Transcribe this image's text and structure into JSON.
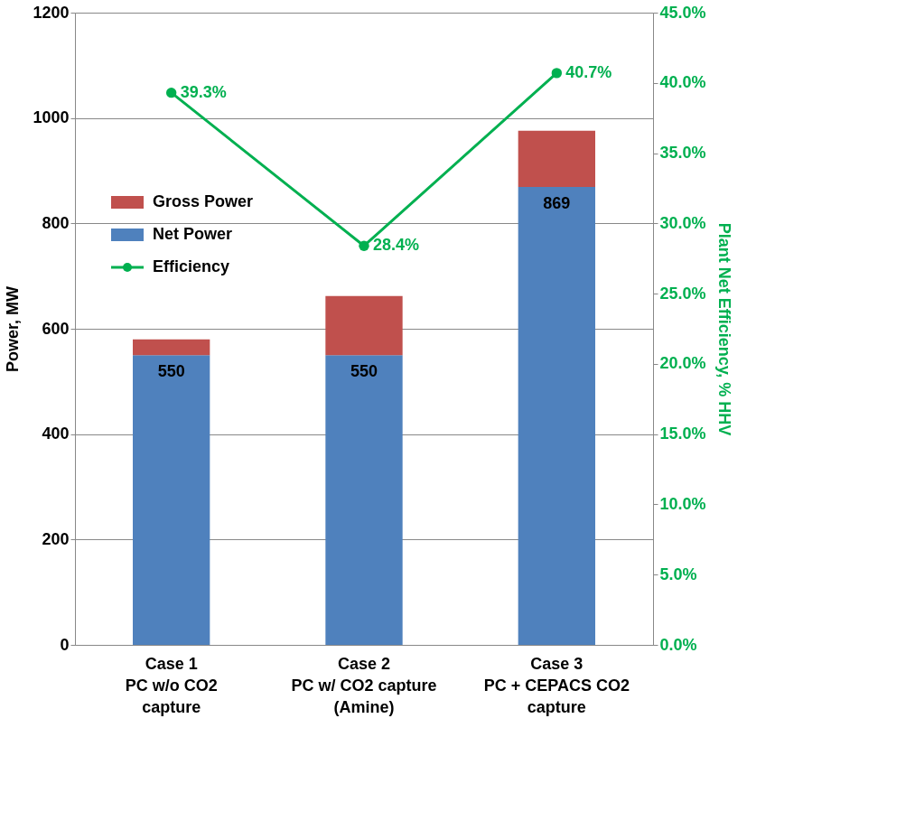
{
  "chart_data": {
    "type": "bar",
    "stacked": true,
    "categories": [
      "Case 1\nPC w/o CO2\ncapture",
      "Case 2\nPC w/ CO2 capture\n(Amine)",
      "Case 3\nPC + CEPACS CO2\ncapture"
    ],
    "series": [
      {
        "name": "Net Power",
        "color": "#4f81bd",
        "values": [
          550,
          550,
          869
        ],
        "value_labels": [
          "550",
          "550",
          "869"
        ]
      },
      {
        "name": "Gross Power",
        "color": "#c0504d",
        "values": [
          30,
          112,
          107
        ]
      },
      {
        "name": "Efficiency",
        "type": "line",
        "axis": "y2",
        "color": "#00b050",
        "marker": "circle",
        "values": [
          39.3,
          28.4,
          40.7
        ],
        "value_labels": [
          "39.3%",
          "28.4%",
          "40.7%"
        ]
      }
    ],
    "ylabel": "Power, MW",
    "y2label": "Plant Net Efficiency, % HHV",
    "ylim": [
      0,
      1200
    ],
    "yticks": [
      0,
      200,
      400,
      600,
      800,
      1000,
      1200
    ],
    "y2lim": [
      0,
      45
    ],
    "y2ticks": [
      {
        "value": 0,
        "label": "0.0%"
      },
      {
        "value": 5,
        "label": "5.0%"
      },
      {
        "value": 10,
        "label": "10.0%"
      },
      {
        "value": 15,
        "label": "15.0%"
      },
      {
        "value": 20,
        "label": "20.0%"
      },
      {
        "value": 25,
        "label": "25.0%"
      },
      {
        "value": 30,
        "label": "30.0%"
      },
      {
        "value": 35,
        "label": "35.0%"
      },
      {
        "value": 40,
        "label": "40.0%"
      },
      {
        "value": 45,
        "label": "45.0%"
      }
    ],
    "grid": "y",
    "legend": "top left"
  }
}
